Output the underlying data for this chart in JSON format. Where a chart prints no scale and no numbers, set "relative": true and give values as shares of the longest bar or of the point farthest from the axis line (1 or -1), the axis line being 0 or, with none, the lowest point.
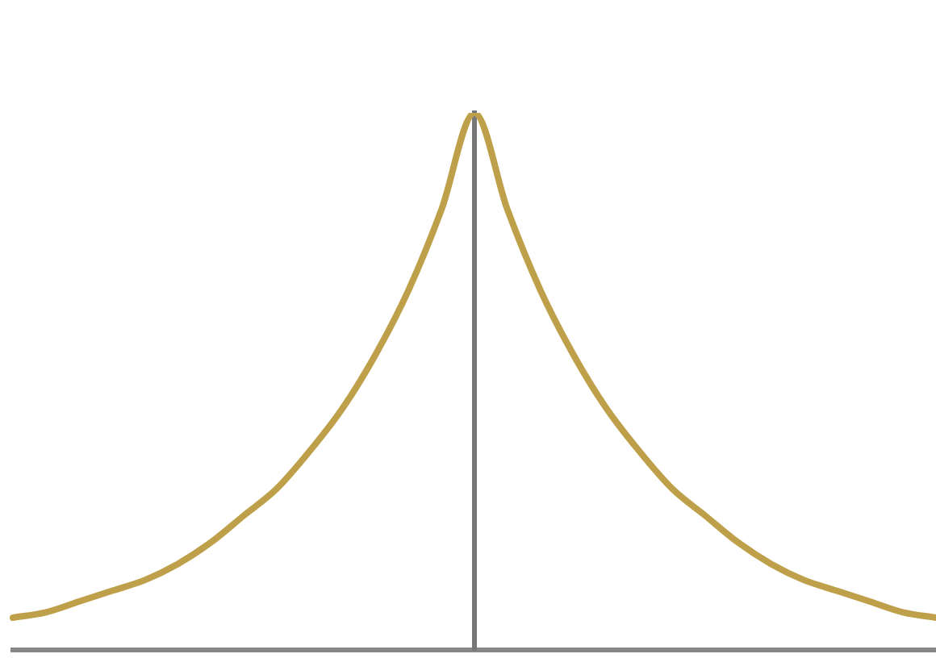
{
  "chart_data": {
    "type": "line",
    "relative": true,
    "categories": [
      null,
      null,
      null,
      null,
      null,
      null,
      null,
      null,
      null,
      null,
      null,
      null,
      null,
      null,
      null,
      null,
      null,
      null,
      null,
      null,
      null,
      null,
      null,
      null,
      null,
      null,
      null,
      null,
      null
    ],
    "series": [
      {
        "color": "#bfa04a",
        "values": [
          0.06,
          0.07,
          0.09,
          0.11,
          0.13,
          0.16,
          0.2,
          0.25,
          0.3,
          0.37,
          0.45,
          0.55,
          0.67,
          0.82,
          1,
          0.82,
          0.67,
          0.55,
          0.45,
          0.37,
          0.3,
          0.25,
          0.2,
          0.16,
          0.13,
          0.11,
          0.09,
          0.07,
          0.06
        ]
      }
    ],
    "tick_labels": false,
    "grid": false,
    "legend": false,
    "marker": "none",
    "line_style": "solid"
  }
}
